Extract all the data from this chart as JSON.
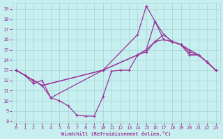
{
  "xlabel": "Windchill (Refroidissement éolien,°C)",
  "background_color": "#c8efef",
  "grid_color": "#a8d8d8",
  "line_color": "#993399",
  "xlim": [
    -0.5,
    23.5
  ],
  "ylim": [
    7.8,
    19.6
  ],
  "xticks": [
    0,
    1,
    2,
    3,
    4,
    5,
    6,
    7,
    8,
    9,
    10,
    11,
    12,
    13,
    14,
    15,
    16,
    17,
    18,
    19,
    20,
    21,
    22,
    23
  ],
  "yticks": [
    8,
    9,
    10,
    11,
    12,
    13,
    14,
    15,
    16,
    17,
    18,
    19
  ],
  "series": [
    {
      "x": [
        0,
        2,
        3,
        10,
        14,
        15,
        16,
        17,
        18,
        19,
        20,
        21,
        22,
        23
      ],
      "y": [
        13,
        12.0,
        11.5,
        13.0,
        14.5,
        14.8,
        15.8,
        16.0,
        15.8,
        15.5,
        14.5,
        14.5,
        13.8,
        13.0
      ]
    },
    {
      "x": [
        0,
        2,
        3,
        10,
        14,
        15,
        16,
        17,
        18,
        19,
        20,
        21,
        22,
        23
      ],
      "y": [
        13,
        12.0,
        11.5,
        13.0,
        14.5,
        15.0,
        15.8,
        16.5,
        15.8,
        15.5,
        15.0,
        14.5,
        13.8,
        13.0
      ]
    },
    {
      "x": [
        0,
        2,
        3,
        4,
        10,
        14,
        15,
        16,
        17,
        18,
        19,
        20,
        21,
        22,
        23
      ],
      "y": [
        13,
        12.0,
        11.5,
        10.3,
        13.0,
        16.5,
        19.3,
        17.8,
        16.5,
        15.8,
        15.5,
        14.8,
        14.5,
        13.8,
        13.0
      ]
    },
    {
      "x": [
        0,
        1,
        2,
        3,
        4,
        5,
        6,
        7,
        8,
        9,
        10,
        11,
        12,
        13,
        14,
        15,
        16,
        17,
        18,
        19,
        20,
        21,
        22,
        23
      ],
      "y": [
        13,
        12.5,
        11.7,
        12.0,
        10.3,
        10.0,
        9.5,
        8.6,
        8.5,
        8.5,
        10.4,
        12.9,
        13.0,
        13.0,
        14.5,
        15.0,
        17.8,
        16.0,
        15.8,
        15.5,
        14.5,
        14.5,
        13.8,
        13.0
      ]
    }
  ]
}
